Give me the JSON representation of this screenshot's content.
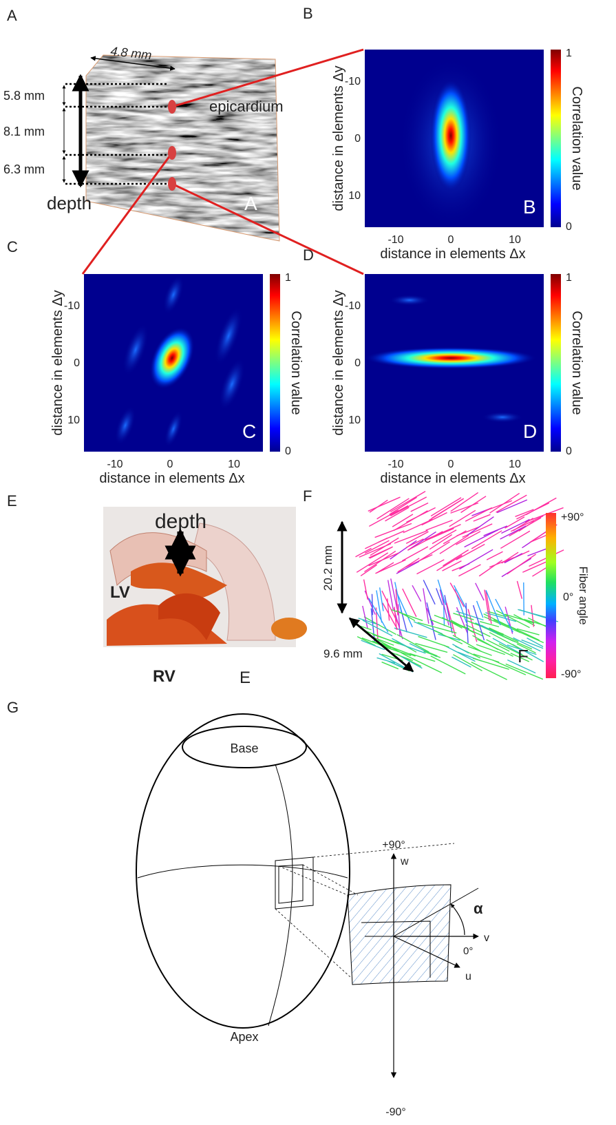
{
  "panel_labels": [
    "A",
    "B",
    "C",
    "D",
    "E",
    "F",
    "G"
  ],
  "panel_a": {
    "width_label": "4.8 mm",
    "depth_labels": [
      "5.8 mm",
      "8.1 mm",
      "6.3 mm"
    ],
    "depth": "depth",
    "epicardium": "epicardium",
    "inset_label": "A"
  },
  "correlation_maps": [
    {
      "inset_label": "B",
      "x_label": "distance in elements Δx",
      "y_label": "distance in elements Δy",
      "x_ticks": [
        "-10",
        "0",
        "10"
      ],
      "y_ticks": [
        "-10",
        "0",
        "10"
      ],
      "colorbar_label": "Correlation value",
      "colorbar_ticks": [
        "1",
        "0"
      ]
    },
    {
      "inset_label": "C",
      "x_label": "distance in elements Δx",
      "y_label": "distance in elements Δy",
      "x_ticks": [
        "-10",
        "0",
        "10"
      ],
      "y_ticks": [
        "-10",
        "0",
        "10"
      ],
      "colorbar_label": "Correlation value",
      "colorbar_ticks": [
        "1",
        "0"
      ]
    },
    {
      "inset_label": "D",
      "x_label": "distance in elements Δx",
      "y_label": "distance in elements Δy",
      "x_ticks": [
        "-10",
        "0",
        "10"
      ],
      "y_ticks": [
        "-10",
        "0",
        "10"
      ],
      "colorbar_label": "Correlation value",
      "colorbar_ticks": [
        "1",
        "0"
      ]
    }
  ],
  "panel_e": {
    "depth": "depth",
    "lv": "LV",
    "rv": "RV",
    "inset_label": "E"
  },
  "panel_f": {
    "height_label": "20.2 mm",
    "width_label": "9.6 mm",
    "colorbar_label": "Fiber angle",
    "colorbar_ticks": [
      "+90°",
      "0°",
      "-90°"
    ],
    "inset_label": "F"
  },
  "panel_g": {
    "base": "Base",
    "apex": "Apex",
    "w": "w",
    "v": "v",
    "u": "u",
    "alpha": "α",
    "top": "+90°",
    "zero": "0°",
    "bottom": "-90°"
  }
}
